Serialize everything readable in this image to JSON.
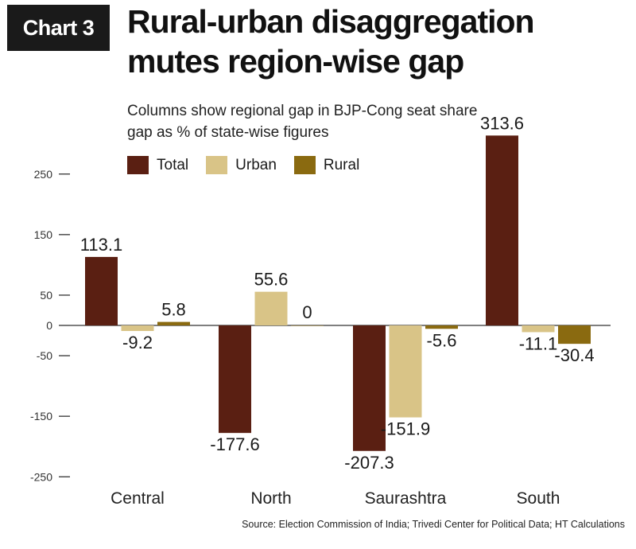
{
  "header": {
    "badge": "Chart 3",
    "title": "Rural-urban disaggregation mutes region-wise gap",
    "subtitle": "Columns show regional gap in BJP-Cong seat share gap as % of state-wise figures"
  },
  "source": "Source: Election Commission of India; Trivedi Center for Political Data; HT Calculations",
  "colors": {
    "Total": "#5a1f12",
    "Urban": "#d9c487",
    "Rural": "#8a6a10",
    "text": "#1a1a1a"
  },
  "chart_data": {
    "type": "bar",
    "title": "Rural-urban disaggregation mutes region-wise gap",
    "subtitle": "Columns show regional gap in BJP-Cong seat share gap as % of state-wise figures",
    "xlabel": "",
    "ylabel": "",
    "categories": [
      "Central",
      "North",
      "Saurashtra",
      "South"
    ],
    "series": [
      {
        "name": "Total",
        "values": [
          113.1,
          -177.6,
          -207.3,
          313.6
        ]
      },
      {
        "name": "Urban",
        "values": [
          -9.2,
          55.6,
          -151.9,
          -11.1
        ]
      },
      {
        "name": "Rural",
        "values": [
          5.8,
          0,
          -5.6,
          -30.4
        ]
      }
    ],
    "value_labels": [
      [
        "113.1",
        "-177.6",
        "-207.3",
        "313.6"
      ],
      [
        "-9.2",
        "55.6",
        "-151.9",
        "-11.1"
      ],
      [
        "5.8",
        "0",
        "-5.6",
        "-30.4"
      ]
    ],
    "yticks": [
      250,
      150,
      50,
      0,
      -50,
      -150,
      -250
    ],
    "ylim": [
      -250,
      313.6
    ],
    "grid": false,
    "legend": "top"
  }
}
